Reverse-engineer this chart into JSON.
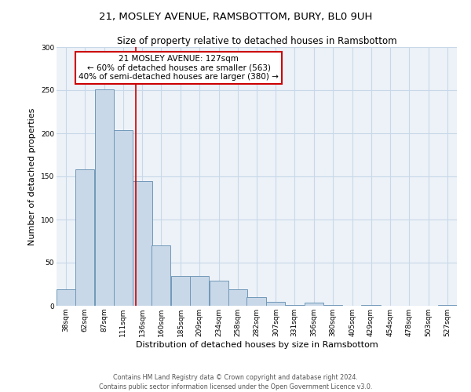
{
  "title": "21, MOSLEY AVENUE, RAMSBOTTOM, BURY, BL0 9UH",
  "subtitle": "Size of property relative to detached houses in Ramsbottom",
  "xlabel": "Distribution of detached houses by size in Ramsbottom",
  "ylabel": "Number of detached properties",
  "bin_labels": [
    "38sqm",
    "62sqm",
    "87sqm",
    "111sqm",
    "136sqm",
    "160sqm",
    "185sqm",
    "209sqm",
    "234sqm",
    "258sqm",
    "282sqm",
    "307sqm",
    "331sqm",
    "356sqm",
    "380sqm",
    "405sqm",
    "429sqm",
    "454sqm",
    "478sqm",
    "503sqm",
    "527sqm"
  ],
  "bar_values": [
    19,
    158,
    251,
    204,
    145,
    70,
    35,
    35,
    29,
    19,
    10,
    5,
    1,
    4,
    1,
    0,
    1,
    0,
    0,
    0,
    1
  ],
  "bar_color": "#c8d8e8",
  "bar_edge_color": "#7098b8",
  "property_label": "21 MOSLEY AVENUE: 127sqm",
  "annotation_line1": "← 60% of detached houses are smaller (563)",
  "annotation_line2": "40% of semi-detached houses are larger (380) →",
  "red_line_x": 127,
  "annotation_box_color": "#ffffff",
  "annotation_box_edge": "#cc0000",
  "red_line_color": "#cc0000",
  "ylim": [
    0,
    300
  ],
  "yticks": [
    0,
    50,
    100,
    150,
    200,
    250,
    300
  ],
  "grid_color": "#c8d8e8",
  "bg_color": "#edf2f8",
  "footer_line1": "Contains HM Land Registry data © Crown copyright and database right 2024.",
  "footer_line2": "Contains public sector information licensed under the Open Government Licence v3.0.",
  "title_fontsize": 9.5,
  "subtitle_fontsize": 8.5,
  "axis_label_fontsize": 8,
  "tick_fontsize": 6.5,
  "footer_fontsize": 5.8,
  "annotation_fontsize": 7.5
}
